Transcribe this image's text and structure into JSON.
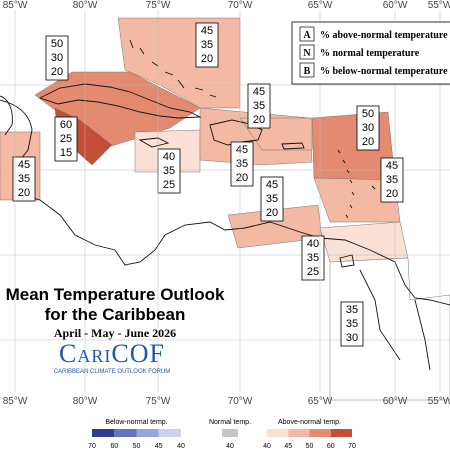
{
  "longitudes": [
    "85°W",
    "80°W",
    "75°W",
    "70°W",
    "65°W",
    "60°W",
    "55°W"
  ],
  "legend": [
    {
      "letter": "A",
      "text": "% above-normal temperature"
    },
    {
      "letter": "N",
      "text": "% normal temperature"
    },
    {
      "letter": "B",
      "text": "% below-normal temperature"
    }
  ],
  "title": [
    "Mean Temperature Outlook",
    "for the Caribbean"
  ],
  "period": "April - May - June 2026",
  "logo": "CariCOF",
  "logo_subtitle": "CARIBBEAN CLIMATE OUTLOOK FORUM",
  "regions": [
    {
      "values": [
        45,
        35,
        20
      ]
    },
    {
      "values": [
        50,
        30,
        20
      ]
    },
    {
      "values": [
        60,
        25,
        15
      ]
    },
    {
      "values": [
        45,
        35,
        20
      ]
    },
    {
      "values": [
        40,
        35,
        25
      ]
    },
    {
      "values": [
        45,
        35,
        20
      ]
    },
    {
      "values": [
        45,
        35,
        20
      ]
    },
    {
      "values": [
        50,
        30,
        20
      ]
    },
    {
      "values": [
        45,
        35,
        20
      ]
    },
    {
      "values": [
        45,
        35,
        20
      ]
    },
    {
      "values": [
        40,
        35,
        25
      ]
    },
    {
      "values": [
        35,
        35,
        30
      ]
    }
  ],
  "colorbar": {
    "below": {
      "label": "Below-normal temp.",
      "ticks": [
        70,
        60,
        50,
        45,
        40
      ],
      "colors": [
        "#2e3c8f",
        "#6472c2",
        "#9aa3da",
        "#cdd1ee"
      ]
    },
    "normal": {
      "label": "Normal temp.",
      "ticks": [
        40
      ],
      "colors": [
        "#c6c6c6"
      ]
    },
    "above": {
      "label": "Above-normal temp.",
      "ticks": [
        40,
        45,
        50,
        60,
        70
      ],
      "colors": [
        "#fbe0d6",
        "#f3b9a2",
        "#e48a70",
        "#c44e36"
      ]
    }
  }
}
